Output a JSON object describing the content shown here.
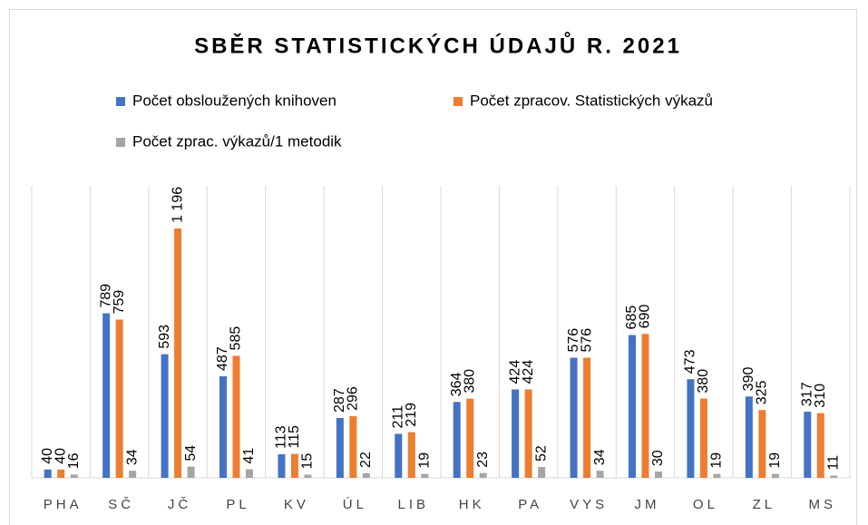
{
  "chart_data": {
    "type": "bar",
    "title": "SBĚR STATISTICKÝCH ÚDAJŮ R. 2021",
    "categories": [
      "PHA",
      "SČ",
      "JČ",
      "PL",
      "KV",
      "ÚL",
      "LIB",
      "HK",
      "PA",
      "VYS",
      "JM",
      "OL",
      "ZL",
      "MS"
    ],
    "series": [
      {
        "name": "Počet obsloužených knihoven",
        "color": "#4472c4",
        "values": [
          40,
          789,
          593,
          487,
          113,
          287,
          211,
          364,
          424,
          576,
          685,
          473,
          390,
          317
        ]
      },
      {
        "name": "Počet zpracov. Statistických výkazů",
        "color": "#ed7d31",
        "values": [
          40,
          759,
          1196,
          585,
          115,
          296,
          219,
          380,
          424,
          576,
          690,
          380,
          325,
          310
        ],
        "value_labels": [
          "40",
          "759",
          "1 196",
          "585",
          "115",
          "296",
          "219",
          "380",
          "424",
          "576",
          "690",
          "380",
          "325",
          "310"
        ]
      },
      {
        "name": "Počet zprac. výkazů/1 metodik",
        "color": "#a5a5a5",
        "values": [
          16,
          34,
          54,
          41,
          15,
          22,
          19,
          23,
          52,
          34,
          30,
          19,
          19,
          11
        ]
      }
    ],
    "ylim": [
      0,
      1400
    ],
    "grid": true
  }
}
